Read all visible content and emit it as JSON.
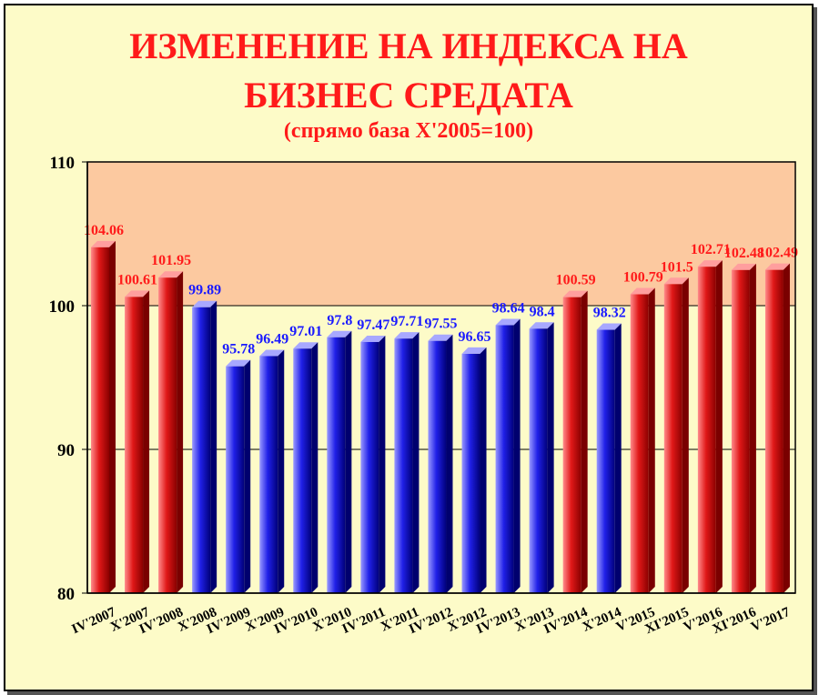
{
  "chart_data": {
    "type": "bar",
    "title": "ИЗМЕНЕНИЕ НА ИНДЕКСА НА",
    "title_line2": "БИЗНЕС СРЕДАТА",
    "subtitle": "(спрямо база X'2005=100)",
    "categories": [
      "IV'2007",
      "X'2007",
      "IV'2008",
      "X'2008",
      "IV'2009",
      "X'2009",
      "IV'2010",
      "X'2010",
      "IV'2011",
      "X'2011",
      "IV'2012",
      "X'2012",
      "IV'2013",
      "X'2013",
      "IV'2014",
      "X'2014",
      "V'2015",
      "XI'2015",
      "V'2016",
      "XI'2016",
      "V'2017"
    ],
    "values": [
      104.06,
      100.61,
      101.95,
      99.89,
      95.78,
      96.49,
      97.01,
      97.8,
      97.47,
      97.71,
      97.55,
      96.65,
      98.64,
      98.4,
      100.59,
      98.32,
      100.79,
      101.5,
      102.71,
      102.48,
      102.49
    ],
    "bar_colors": [
      "red",
      "red",
      "red",
      "blue",
      "blue",
      "blue",
      "blue",
      "blue",
      "blue",
      "blue",
      "blue",
      "blue",
      "blue",
      "blue",
      "red",
      "blue",
      "red",
      "red",
      "red",
      "red",
      "red"
    ],
    "ylim": [
      80,
      110
    ],
    "yticks": [
      80,
      90,
      100,
      110
    ],
    "grid": true,
    "legend": "none",
    "colors": {
      "above_fill": "#fcc9a0",
      "below_fill": "#fdfbc8",
      "red_label": "#ff1a1a",
      "blue_label": "#1a1aff",
      "title": "#ff1a1a"
    }
  }
}
